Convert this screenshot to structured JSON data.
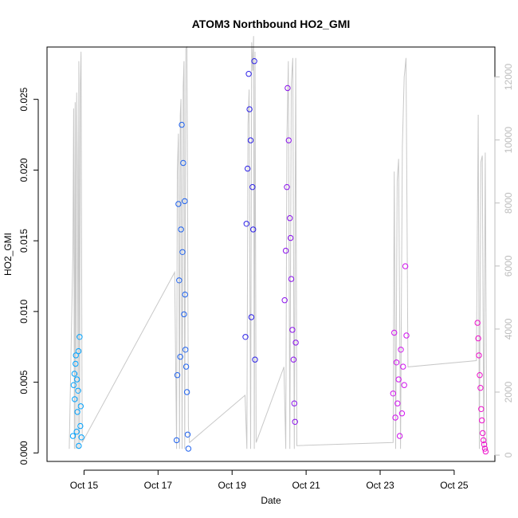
{
  "chart_data": {
    "type": "scatter",
    "title": "ATOM3 Northbound HO2_GMI",
    "xlabel": "Date",
    "ylabel": "HO2_GMI",
    "x_ticks": [
      "Oct 15",
      "Oct 17",
      "Oct 19",
      "Oct 21",
      "Oct 23",
      "Oct 25"
    ],
    "x_tick_days": [
      15,
      17,
      19,
      21,
      23,
      25
    ],
    "xlim": [
      14.0,
      26.1
    ],
    "ylim": [
      -0.0006,
      0.0287
    ],
    "y_ticks": [
      "0.000",
      "0.005",
      "0.010",
      "0.015",
      "0.020",
      "0.025"
    ],
    "y_tick_values": [
      0,
      0.005,
      0.01,
      0.015,
      0.02,
      0.025
    ],
    "y2_ticks": [
      "0",
      "2000",
      "4000",
      "6000",
      "8000",
      "10000",
      "12000"
    ],
    "y2_tick_values": [
      0,
      2000,
      4000,
      6000,
      8000,
      10000,
      12000
    ],
    "y2lim": [
      -200,
      12950
    ],
    "grid": false,
    "colors": {
      "frame": "#000000",
      "altitude_line": "#c8c8c8",
      "right_axis": "#bdbdbd",
      "flight_oct14": "#00a2ff",
      "flight_oct17": "#1f62ee",
      "flight_oct19": "#2a1ee8",
      "flight_oct20": "#8a10ec",
      "flight_oct23": "#d010ee",
      "flight_oct25": "#ee10cc"
    },
    "series": [
      {
        "color_key": "flight_oct14",
        "x": [
          14.7,
          14.72,
          14.74,
          14.75,
          14.77,
          14.78,
          14.8,
          14.81,
          14.82,
          14.84,
          14.85,
          14.86,
          14.88,
          14.9,
          14.91,
          14.93
        ],
        "y": [
          0.0012,
          0.0048,
          0.0056,
          0.0038,
          0.0063,
          0.0069,
          0.0015,
          0.0052,
          0.0029,
          0.0044,
          0.0072,
          0.0005,
          0.0082,
          0.0019,
          0.0033,
          0.0011
        ]
      },
      {
        "color_key": "flight_oct17",
        "x": [
          17.5,
          17.52,
          17.55,
          17.57,
          17.6,
          17.62,
          17.64,
          17.66,
          17.68,
          17.7,
          17.72,
          17.73,
          17.74,
          17.76,
          17.78,
          17.8,
          17.82
        ],
        "y": [
          0.0009,
          0.0055,
          0.0176,
          0.0122,
          0.0068,
          0.0158,
          0.0232,
          0.0142,
          0.0205,
          0.0098,
          0.0178,
          0.0112,
          0.0073,
          0.0061,
          0.0043,
          0.0013,
          0.0003
        ]
      },
      {
        "color_key": "flight_oct19",
        "x": [
          19.36,
          19.39,
          19.42,
          19.45,
          19.47,
          19.5,
          19.52,
          19.55,
          19.57,
          19.6,
          19.62
        ],
        "y": [
          0.0082,
          0.0162,
          0.0201,
          0.0268,
          0.0243,
          0.0221,
          0.0096,
          0.0188,
          0.0158,
          0.0277,
          0.0066
        ]
      },
      {
        "color_key": "flight_oct20",
        "x": [
          20.42,
          20.45,
          20.48,
          20.5,
          20.53,
          20.56,
          20.58,
          20.6,
          20.63,
          20.66,
          20.68,
          20.7,
          20.72
        ],
        "y": [
          0.0108,
          0.0143,
          0.0188,
          0.0258,
          0.0221,
          0.0166,
          0.0152,
          0.0123,
          0.0087,
          0.0066,
          0.0035,
          0.0022,
          0.0078
        ]
      },
      {
        "color_key": "flight_oct23",
        "x": [
          23.35,
          23.38,
          23.41,
          23.44,
          23.47,
          23.5,
          23.53,
          23.56,
          23.59,
          23.62,
          23.65,
          23.68,
          23.71
        ],
        "y": [
          0.0042,
          0.0085,
          0.0025,
          0.0064,
          0.0035,
          0.0052,
          0.0012,
          0.0073,
          0.0028,
          0.0061,
          0.0048,
          0.0132,
          0.0083
        ]
      },
      {
        "color_key": "flight_oct25",
        "x": [
          25.63,
          25.65,
          25.67,
          25.69,
          25.71,
          25.73,
          25.75,
          25.77,
          25.79,
          25.81,
          25.83,
          25.85
        ],
        "y": [
          0.0092,
          0.0081,
          0.0069,
          0.0055,
          0.0046,
          0.0031,
          0.0023,
          0.0014,
          0.0009,
          0.0006,
          0.0003,
          0.0001
        ]
      }
    ],
    "altitude": {
      "axis": "right",
      "x": [
        14.6,
        14.7,
        14.72,
        14.74,
        14.76,
        14.78,
        14.8,
        14.82,
        14.84,
        14.86,
        14.88,
        14.9,
        14.92,
        14.95,
        17.45,
        17.5,
        17.52,
        17.55,
        17.58,
        17.6,
        17.62,
        17.65,
        17.68,
        17.7,
        17.72,
        17.75,
        17.78,
        17.82,
        17.85,
        19.35,
        19.4,
        19.43,
        19.46,
        19.5,
        19.53,
        19.56,
        19.58,
        19.6,
        19.62,
        19.65,
        20.4,
        20.45,
        20.48,
        20.52,
        20.56,
        20.6,
        20.64,
        20.68,
        20.72,
        20.75,
        23.35,
        23.38,
        23.42,
        23.46,
        23.5,
        23.55,
        23.6,
        23.65,
        23.7,
        23.75,
        25.6,
        25.65,
        25.68,
        25.72,
        25.76,
        25.8,
        25.84,
        25.88
      ],
      "y": [
        200,
        6500,
        11000,
        200,
        11200,
        200,
        11500,
        9000,
        200,
        12500,
        200,
        11800,
        12800,
        400,
        5800,
        200,
        9000,
        10200,
        200,
        10800,
        11300,
        200,
        11700,
        12500,
        200,
        12900,
        12950,
        900,
        400,
        1900,
        200,
        10500,
        11600,
        200,
        13100,
        12200,
        13300,
        200,
        12800,
        400,
        2800,
        200,
        10000,
        12500,
        200,
        11800,
        12600,
        200,
        12600,
        300,
        400,
        9000,
        200,
        8700,
        9400,
        200,
        9800,
        12000,
        12600,
        2800,
        3000,
        10800,
        200,
        9300,
        9500,
        200,
        9600,
        200
      ]
    }
  }
}
